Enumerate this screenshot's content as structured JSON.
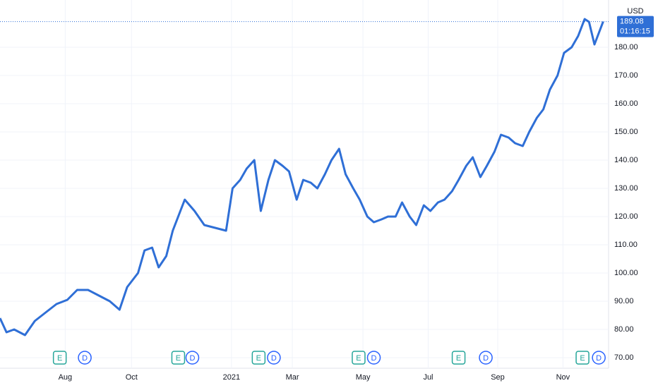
{
  "chart_data": {
    "type": "line",
    "currency": "USD",
    "color": "#2f6fd6",
    "grid": true,
    "xlim": [
      0,
      560
    ],
    "ylim": [
      66.25,
      196.75
    ],
    "xticks": [
      {
        "value": 60,
        "label": "Aug"
      },
      {
        "value": 121,
        "label": "Oct"
      },
      {
        "value": 213,
        "label": "2021"
      },
      {
        "value": 269,
        "label": "Mar"
      },
      {
        "value": 334,
        "label": "May"
      },
      {
        "value": 394,
        "label": "Jul"
      },
      {
        "value": 458,
        "label": "Sep"
      },
      {
        "value": 518,
        "label": "Nov"
      }
    ],
    "yticks": [
      {
        "value": 70,
        "label": "70.00"
      },
      {
        "value": 80,
        "label": "80.00"
      },
      {
        "value": 90,
        "label": "90.00"
      },
      {
        "value": 100,
        "label": "100.00"
      },
      {
        "value": 110,
        "label": "110.00"
      },
      {
        "value": 120,
        "label": "120.00"
      },
      {
        "value": 130,
        "label": "130.00"
      },
      {
        "value": 140,
        "label": "140.00"
      },
      {
        "value": 150,
        "label": "150.00"
      },
      {
        "value": 160,
        "label": "160.00"
      },
      {
        "value": 170,
        "label": "170.00"
      },
      {
        "value": 180,
        "label": "180.00"
      }
    ],
    "x": [
      0,
      6,
      13,
      23,
      32,
      42,
      52,
      62,
      71,
      81,
      91,
      101,
      110,
      117,
      127,
      133,
      140,
      146,
      153,
      159,
      166,
      170,
      179,
      188,
      198,
      208,
      214,
      221,
      227,
      234,
      240,
      247,
      253,
      260,
      266,
      273,
      279,
      286,
      292,
      299,
      305,
      312,
      318,
      325,
      331,
      338,
      344,
      351,
      357,
      364,
      370,
      377,
      383,
      390,
      396,
      403,
      409,
      416,
      422,
      429,
      435,
      442,
      448,
      455,
      461,
      468,
      474,
      481,
      487,
      494,
      500,
      506,
      513,
      519,
      526,
      532,
      538,
      542,
      547,
      551,
      555
    ],
    "values": [
      84,
      79,
      80,
      78,
      83,
      86,
      89,
      90.5,
      94,
      94,
      92,
      90,
      87,
      95,
      100,
      108,
      109,
      102,
      106,
      115,
      122,
      126,
      122,
      117,
      116,
      115,
      130,
      133,
      137,
      140,
      122,
      133,
      140,
      138,
      136,
      126,
      133,
      132,
      130,
      135,
      140,
      144,
      135,
      130,
      126,
      120,
      118,
      119,
      120,
      120,
      125,
      120,
      117,
      124,
      122,
      125,
      126,
      129,
      133,
      138,
      141,
      134,
      138,
      143,
      149,
      148,
      146,
      145,
      150,
      155,
      158,
      165,
      170,
      178,
      180,
      184,
      190,
      189,
      181,
      185,
      189.08
    ],
    "price_marker": {
      "value": 189.08,
      "label": "189.08",
      "countdown": "01:16:15"
    },
    "events": [
      {
        "x": 55,
        "label": "E"
      },
      {
        "x": 78,
        "label": "D"
      },
      {
        "x": 164,
        "label": "E"
      },
      {
        "x": 177,
        "label": "D"
      },
      {
        "x": 238,
        "label": "E"
      },
      {
        "x": 252,
        "label": "D"
      },
      {
        "x": 330,
        "label": "E"
      },
      {
        "x": 344,
        "label": "D"
      },
      {
        "x": 422,
        "label": "E"
      },
      {
        "x": 447,
        "label": "D"
      },
      {
        "x": 536,
        "label": "E"
      },
      {
        "x": 551,
        "label": "D"
      }
    ]
  }
}
